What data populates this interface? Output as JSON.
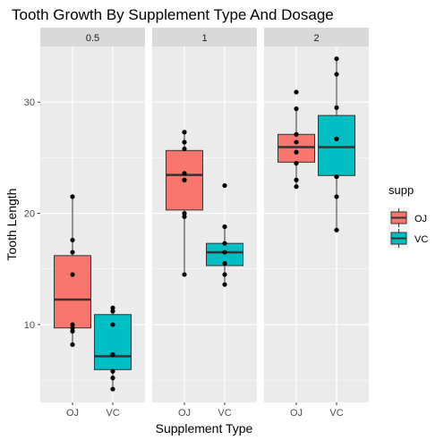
{
  "chart_data": {
    "type": "boxplot",
    "title": "Tooth Growth By Supplement Type And Dosage",
    "xlabel": "Supplement Type",
    "ylabel": "Tooth Length",
    "ylim": [
      3,
      35
    ],
    "yticks": [
      10,
      20,
      30
    ],
    "categories": [
      "OJ",
      "VC"
    ],
    "facets": [
      "0.5",
      "1",
      "2"
    ],
    "grid": true,
    "legend": {
      "title": "supp",
      "position": "right",
      "entries": [
        {
          "label": "OJ",
          "color": "#F8766D"
        },
        {
          "label": "VC",
          "color": "#00BFC4"
        }
      ]
    },
    "panels": [
      {
        "facet": "0.5",
        "boxes": [
          {
            "category": "OJ",
            "min": 8.2,
            "q1": 9.7,
            "median": 12.25,
            "q3": 16.2,
            "max": 21.5,
            "points": [
              21.5,
              17.6,
              16.5,
              14.5,
              10.0,
              9.7,
              9.4,
              8.2
            ]
          },
          {
            "category": "VC",
            "min": 4.2,
            "q1": 5.95,
            "median": 7.15,
            "q3": 10.9,
            "max": 11.5,
            "points": [
              11.5,
              11.2,
              10.0,
              7.3,
              5.8,
              5.2,
              4.2
            ]
          }
        ]
      },
      {
        "facet": "1",
        "boxes": [
          {
            "category": "OJ",
            "min": 14.5,
            "q1": 20.3,
            "median": 23.45,
            "q3": 25.65,
            "max": 27.3,
            "points": [
              27.3,
              26.4,
              25.8,
              23.6,
              23.0,
              20.0,
              19.7,
              14.5
            ]
          },
          {
            "category": "VC",
            "min": 13.6,
            "q1": 15.3,
            "median": 16.5,
            "q3": 17.3,
            "max": 18.8,
            "points": [
              22.5,
              18.8,
              17.3,
              16.5,
              15.5,
              14.5,
              13.6
            ]
          }
        ]
      },
      {
        "facet": "2",
        "boxes": [
          {
            "category": "OJ",
            "min": 22.4,
            "q1": 24.6,
            "median": 25.95,
            "q3": 27.1,
            "max": 29.4,
            "points": [
              30.9,
              29.4,
              27.1,
              26.4,
              25.5,
              24.5,
              23.0,
              22.4
            ]
          },
          {
            "category": "VC",
            "min": 18.5,
            "q1": 23.4,
            "median": 25.95,
            "q3": 28.8,
            "max": 33.9,
            "points": [
              33.9,
              32.5,
              29.5,
              26.7,
              23.3,
              21.5,
              18.5
            ]
          }
        ]
      }
    ]
  }
}
